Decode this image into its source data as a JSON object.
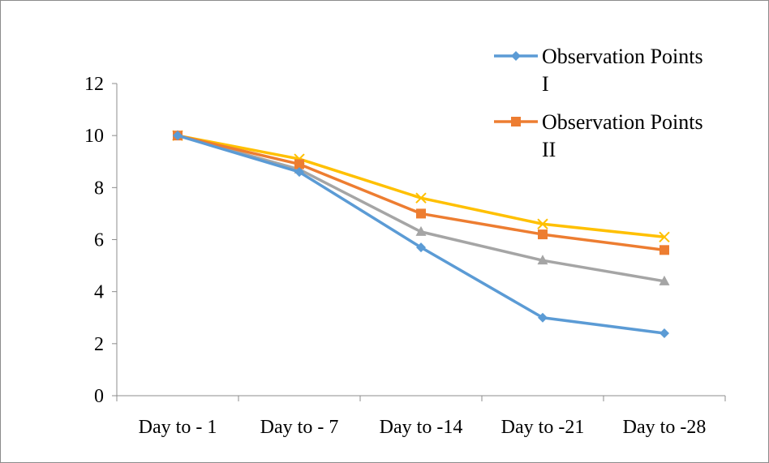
{
  "chart_data": {
    "type": "line",
    "title": "",
    "xlabel": "",
    "ylabel": "",
    "categories": [
      "Day to - 1",
      "Day to - 7",
      "Day to -14",
      "Day to -21",
      "Day to -28"
    ],
    "ylim": [
      0,
      12
    ],
    "yticks": [
      "0",
      "2",
      "4",
      "6",
      "8",
      "10",
      "12"
    ],
    "grid": false,
    "legend_position": "top-right",
    "series": [
      {
        "name": "Observation Points I",
        "legend_lines": [
          "Observation Points",
          "I"
        ],
        "values": [
          10,
          8.6,
          5.7,
          3.0,
          2.4
        ],
        "color": "#5b9bd5",
        "marker": "diamond"
      },
      {
        "name": "Observation Points II",
        "legend_lines": [
          "Observation Points",
          "II"
        ],
        "values": [
          10,
          8.9,
          7.0,
          6.2,
          5.6
        ],
        "color": "#ed7d31",
        "marker": "square"
      },
      {
        "values": [
          10,
          8.7,
          6.3,
          5.2,
          4.4
        ],
        "color": "#a5a5a5",
        "marker": "triangle"
      },
      {
        "values": [
          10,
          9.1,
          7.6,
          6.6,
          6.1
        ],
        "color": "#ffc000",
        "marker": "x"
      }
    ]
  }
}
